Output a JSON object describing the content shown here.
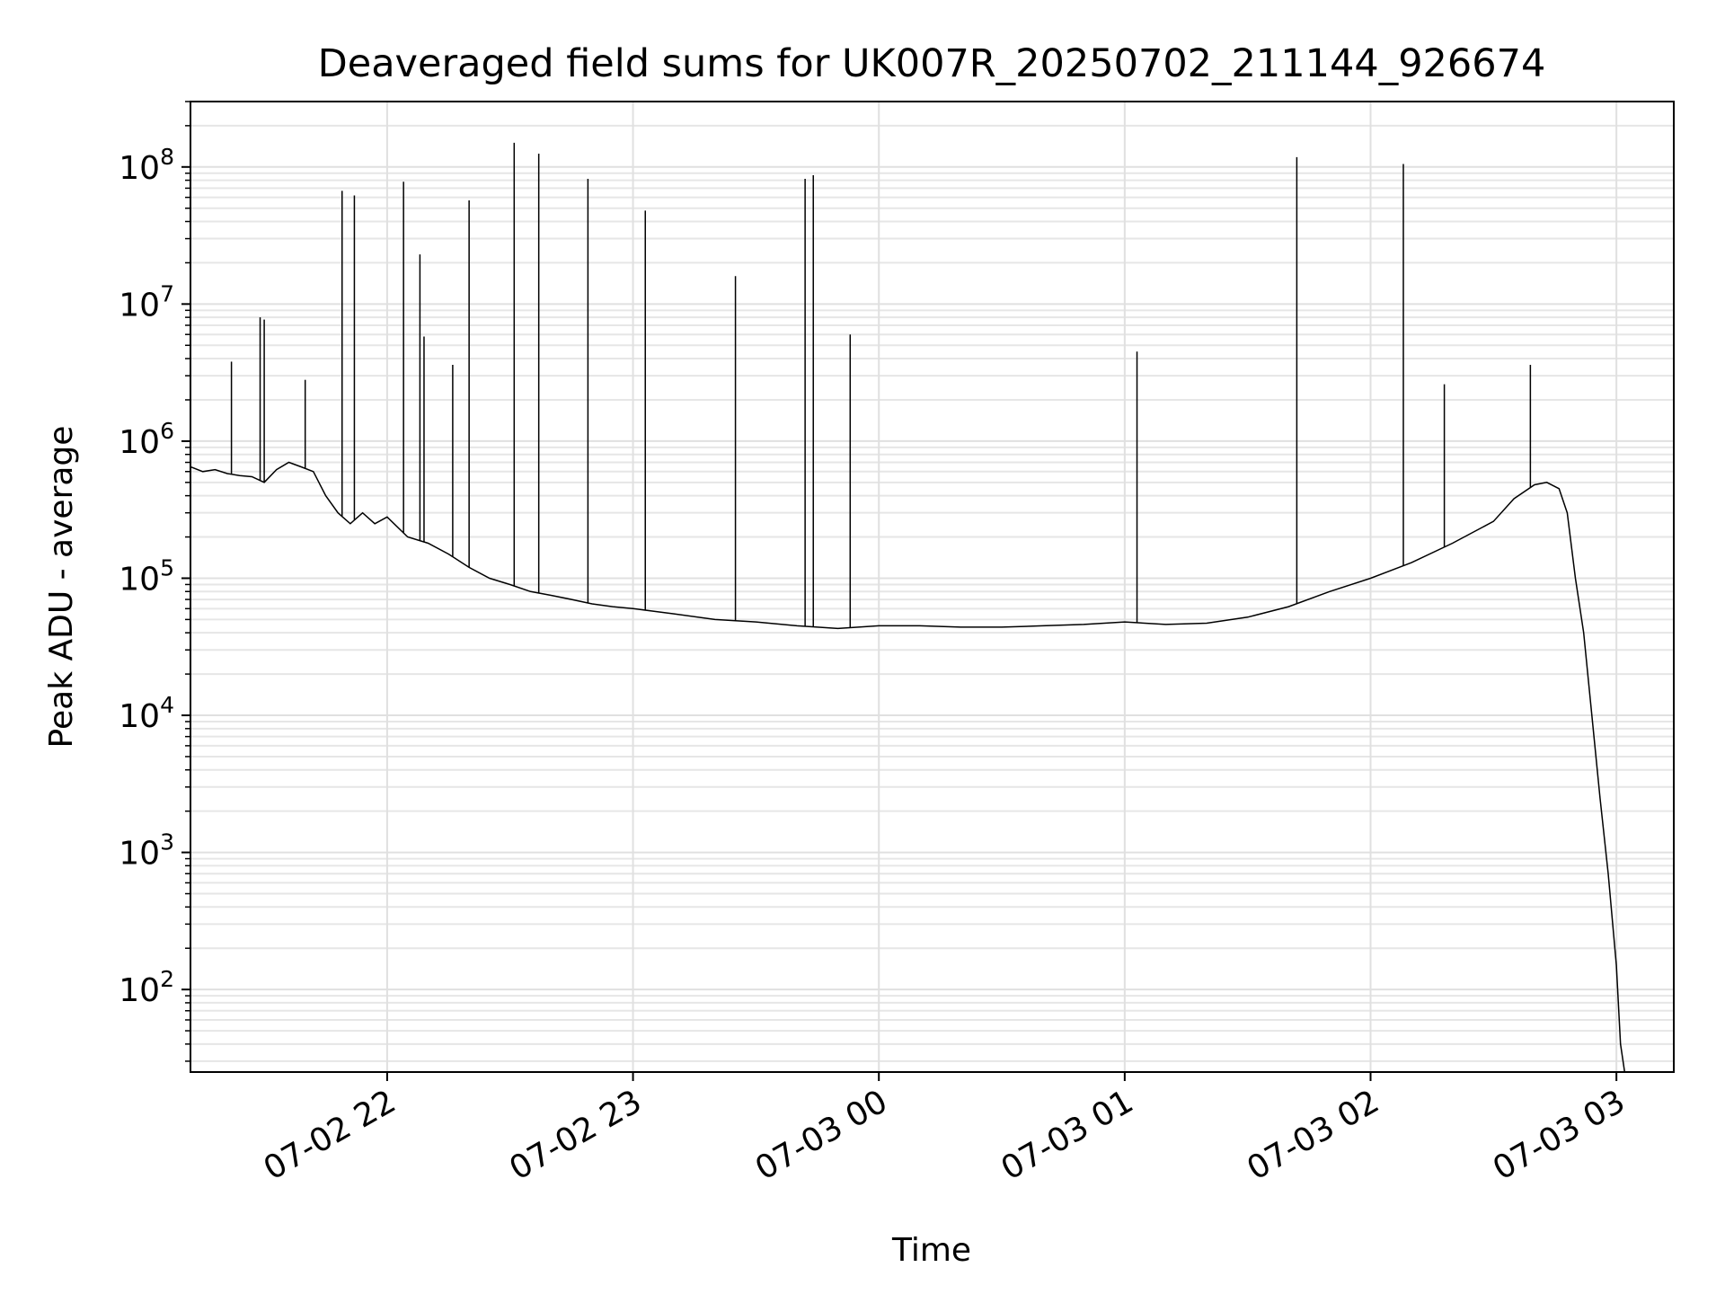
{
  "chart_data": {
    "type": "line",
    "title": "Deaveraged field sums for UK007R_20250702_211144_926674",
    "xlabel": "Time",
    "ylabel": "Peak ADU - average",
    "y_scale": "log",
    "xlim": [
      "2025-07-02 21:12",
      "2025-07-03 03:14"
    ],
    "ylim": [
      25,
      300000000
    ],
    "grid": true,
    "grid_minor": true,
    "line_color": "#000000",
    "x_ticks": [
      {
        "label": "07-02 22",
        "value": "2025-07-02 22:00"
      },
      {
        "label": "07-02 23",
        "value": "2025-07-02 23:00"
      },
      {
        "label": "07-03 00",
        "value": "2025-07-03 00:00"
      },
      {
        "label": "07-03 01",
        "value": "2025-07-03 01:00"
      },
      {
        "label": "07-03 02",
        "value": "2025-07-03 02:00"
      },
      {
        "label": "07-03 03",
        "value": "2025-07-03 03:00"
      }
    ],
    "y_ticks": [
      {
        "base": "10",
        "exp": "2",
        "value": 100
      },
      {
        "base": "10",
        "exp": "3",
        "value": 1000
      },
      {
        "base": "10",
        "exp": "4",
        "value": 10000
      },
      {
        "base": "10",
        "exp": "5",
        "value": 100000
      },
      {
        "base": "10",
        "exp": "6",
        "value": 1000000
      },
      {
        "base": "10",
        "exp": "7",
        "value": 10000000
      },
      {
        "base": "10",
        "exp": "8",
        "value": 100000000
      }
    ],
    "series": [
      {
        "x": [
          "2025-07-02 21:12",
          "2025-07-02 21:15",
          "2025-07-02 21:18",
          "2025-07-02 21:21",
          "2025-07-02 21:24",
          "2025-07-02 21:27",
          "2025-07-02 21:30",
          "2025-07-02 21:33",
          "2025-07-02 21:36",
          "2025-07-02 21:39",
          "2025-07-02 21:42",
          "2025-07-02 21:45",
          "2025-07-02 21:48",
          "2025-07-02 21:51",
          "2025-07-02 21:54",
          "2025-07-02 21:57",
          "2025-07-02 22:00",
          "2025-07-02 22:05",
          "2025-07-02 22:10",
          "2025-07-02 22:15",
          "2025-07-02 22:20",
          "2025-07-02 22:25",
          "2025-07-02 22:30",
          "2025-07-02 22:35",
          "2025-07-02 22:40",
          "2025-07-02 22:45",
          "2025-07-02 22:50",
          "2025-07-02 22:55",
          "2025-07-02 23:00",
          "2025-07-02 23:10",
          "2025-07-02 23:20",
          "2025-07-02 23:30",
          "2025-07-02 23:40",
          "2025-07-02 23:50",
          "2025-07-03 00:00",
          "2025-07-03 00:10",
          "2025-07-03 00:20",
          "2025-07-03 00:30",
          "2025-07-03 00:40",
          "2025-07-03 00:50",
          "2025-07-03 01:00",
          "2025-07-03 01:10",
          "2025-07-03 01:20",
          "2025-07-03 01:30",
          "2025-07-03 01:40",
          "2025-07-03 01:50",
          "2025-07-03 02:00",
          "2025-07-03 02:10",
          "2025-07-03 02:20",
          "2025-07-03 02:30",
          "2025-07-03 02:35",
          "2025-07-03 02:40",
          "2025-07-03 02:43",
          "2025-07-03 02:46",
          "2025-07-03 02:48",
          "2025-07-03 02:50",
          "2025-07-03 02:52",
          "2025-07-03 02:54",
          "2025-07-03 02:56",
          "2025-07-03 02:58",
          "2025-07-03 03:00",
          "2025-07-03 03:01",
          "2025-07-03 03:02"
        ],
        "y": [
          650000,
          600000,
          620000,
          580000,
          560000,
          550000,
          500000,
          620000,
          700000,
          650000,
          600000,
          400000,
          300000,
          250000,
          300000,
          250000,
          280000,
          200000,
          180000,
          150000,
          120000,
          100000,
          90000,
          80000,
          75000,
          70000,
          65000,
          62000,
          60000,
          55000,
          50000,
          48000,
          45000,
          43000,
          45000,
          45000,
          44000,
          44000,
          45000,
          46000,
          48000,
          46000,
          47000,
          52000,
          62000,
          80000,
          100000,
          130000,
          180000,
          260000,
          380000,
          480000,
          500000,
          450000,
          300000,
          100000,
          40000,
          10000,
          2500,
          700,
          150,
          40,
          25
        ]
      }
    ],
    "spikes": [
      {
        "x": "2025-07-02 21:22",
        "y": 3800000
      },
      {
        "x": "2025-07-02 21:29",
        "y": 8000000
      },
      {
        "x": "2025-07-02 21:30",
        "y": 7700000
      },
      {
        "x": "2025-07-02 21:40",
        "y": 2800000
      },
      {
        "x": "2025-07-02 21:49",
        "y": 67000000
      },
      {
        "x": "2025-07-02 21:52",
        "y": 62000000
      },
      {
        "x": "2025-07-02 22:04",
        "y": 78000000
      },
      {
        "x": "2025-07-02 22:08",
        "y": 23000000
      },
      {
        "x": "2025-07-02 22:09",
        "y": 5800000
      },
      {
        "x": "2025-07-02 22:16",
        "y": 3600000
      },
      {
        "x": "2025-07-02 22:20",
        "y": 57000000
      },
      {
        "x": "2025-07-02 22:31",
        "y": 150000000
      },
      {
        "x": "2025-07-02 22:37",
        "y": 125000000
      },
      {
        "x": "2025-07-02 22:49",
        "y": 82000000
      },
      {
        "x": "2025-07-02 23:03",
        "y": 48000000
      },
      {
        "x": "2025-07-02 23:25",
        "y": 16000000
      },
      {
        "x": "2025-07-02 23:42",
        "y": 82000000
      },
      {
        "x": "2025-07-02 23:44",
        "y": 87000000
      },
      {
        "x": "2025-07-02 23:53",
        "y": 6000000
      },
      {
        "x": "2025-07-03 01:03",
        "y": 4500000
      },
      {
        "x": "2025-07-03 01:42",
        "y": 118000000
      },
      {
        "x": "2025-07-03 02:08",
        "y": 105000000
      },
      {
        "x": "2025-07-03 02:18",
        "y": 2600000
      },
      {
        "x": "2025-07-03 02:39",
        "y": 3600000
      }
    ]
  }
}
